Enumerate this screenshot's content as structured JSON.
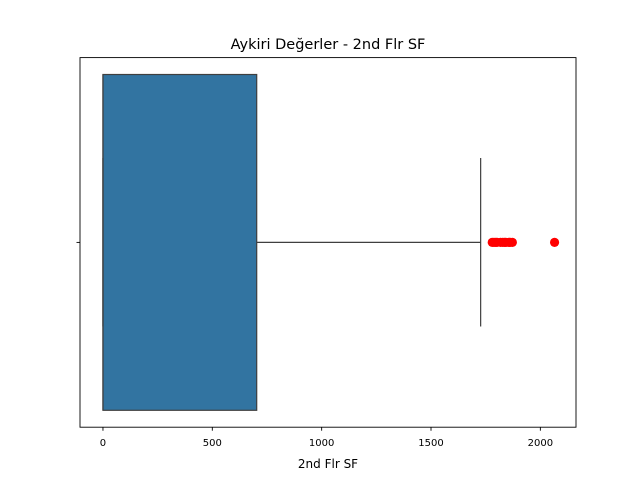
{
  "chart_data": {
    "type": "box",
    "orientation": "horizontal",
    "title": "Aykiri Değerler - 2nd Flr SF",
    "xlabel": "2nd Flr SF",
    "ylabel": "",
    "xlim": [
      -105,
      2163
    ],
    "x_ticks": [
      0,
      500,
      1000,
      1500,
      2000
    ],
    "x_tick_labels": [
      "0",
      "500",
      "1000",
      "1500",
      "2000"
    ],
    "box": {
      "min": 0,
      "q1": 0,
      "median": 0,
      "q3": 703,
      "whisker_low": 0,
      "whisker_high": 1727
    },
    "outliers": [
      1780,
      1788,
      1796,
      1802,
      1818,
      1828,
      1836,
      1842,
      1856,
      1862,
      1872,
      2065
    ],
    "colors": {
      "box_fill": "#3274a1",
      "line": "#3f3f3f",
      "outlier": "#ff0000"
    },
    "grid": false,
    "legend": "none"
  }
}
